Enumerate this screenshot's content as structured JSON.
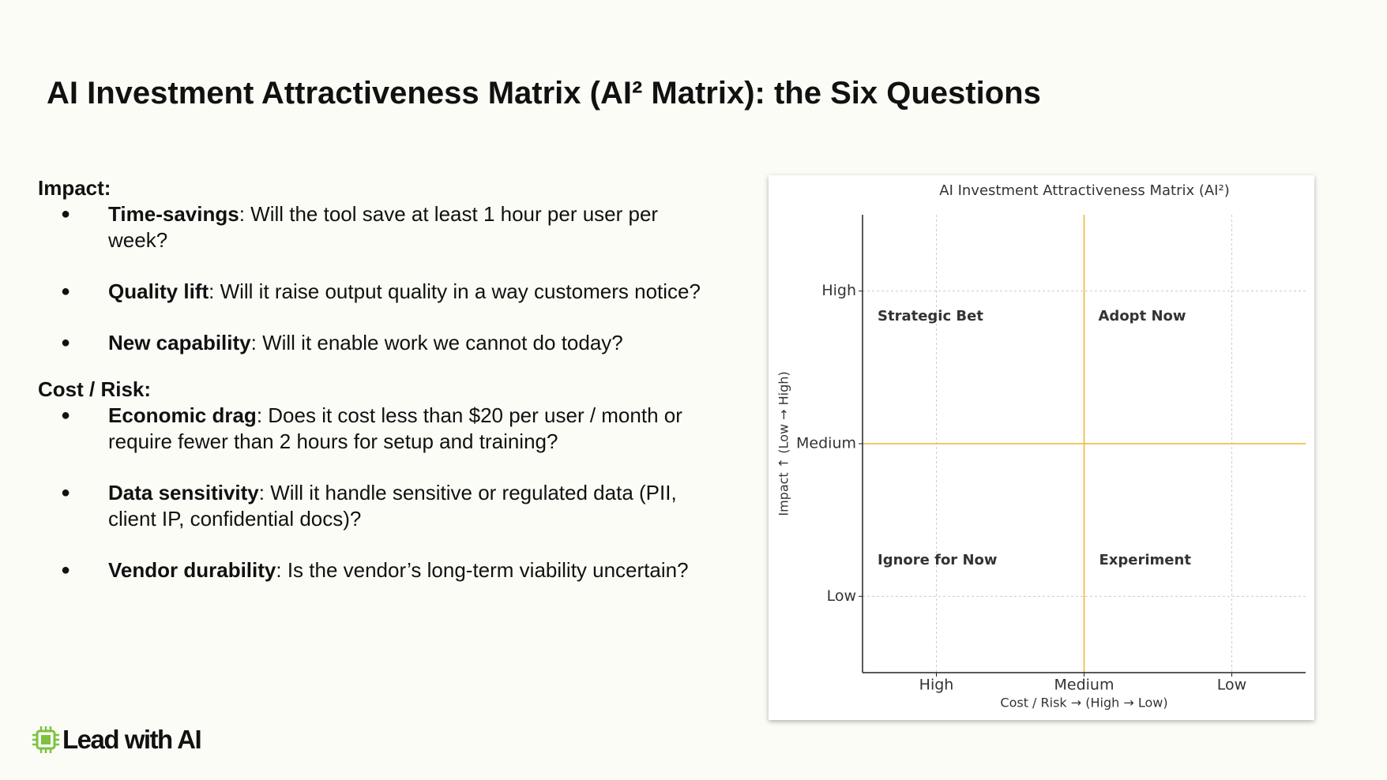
{
  "header": {
    "title": "AI Investment Attractiveness Matrix (AI² Matrix): the Six Questions"
  },
  "sections": [
    {
      "heading": "Impact:",
      "items": [
        {
          "term": "Time-savings",
          "text": ": Will the tool save at least 1 hour per user per week?"
        },
        {
          "term": "Quality lift",
          "text": ": Will it raise output quality in a way customers notice?"
        },
        {
          "term": "New capability",
          "text": ": Will it enable work we cannot do today?"
        }
      ]
    },
    {
      "heading": "Cost / Risk:",
      "items": [
        {
          "term": "Economic drag",
          "text": ": Does it cost less than $20 per user / month or require fewer than 2 hours for setup and training?"
        },
        {
          "term": "Data sensitivity",
          "text": ": Will it handle sensitive or regulated data (PII, client IP, confidential docs)?"
        },
        {
          "term": "Vendor durability",
          "text": ": Is the vendor’s long-term viability uncertain?"
        }
      ]
    }
  ],
  "chart": {
    "title": "AI Investment Attractiveness Matrix (AI²)",
    "x_label": "Cost / Risk  →  (High → Low)",
    "y_label": "Impact  ↑  (Low → High)",
    "x_categories": [
      "High",
      "Medium",
      "Low"
    ],
    "y_categories": [
      "Low",
      "Medium",
      "High"
    ],
    "quadrants": [
      "Strategic Bet",
      "Adopt Now",
      "Ignore for Now",
      "Experiment"
    ]
  },
  "footer": {
    "logo": "Lead with AI"
  }
}
